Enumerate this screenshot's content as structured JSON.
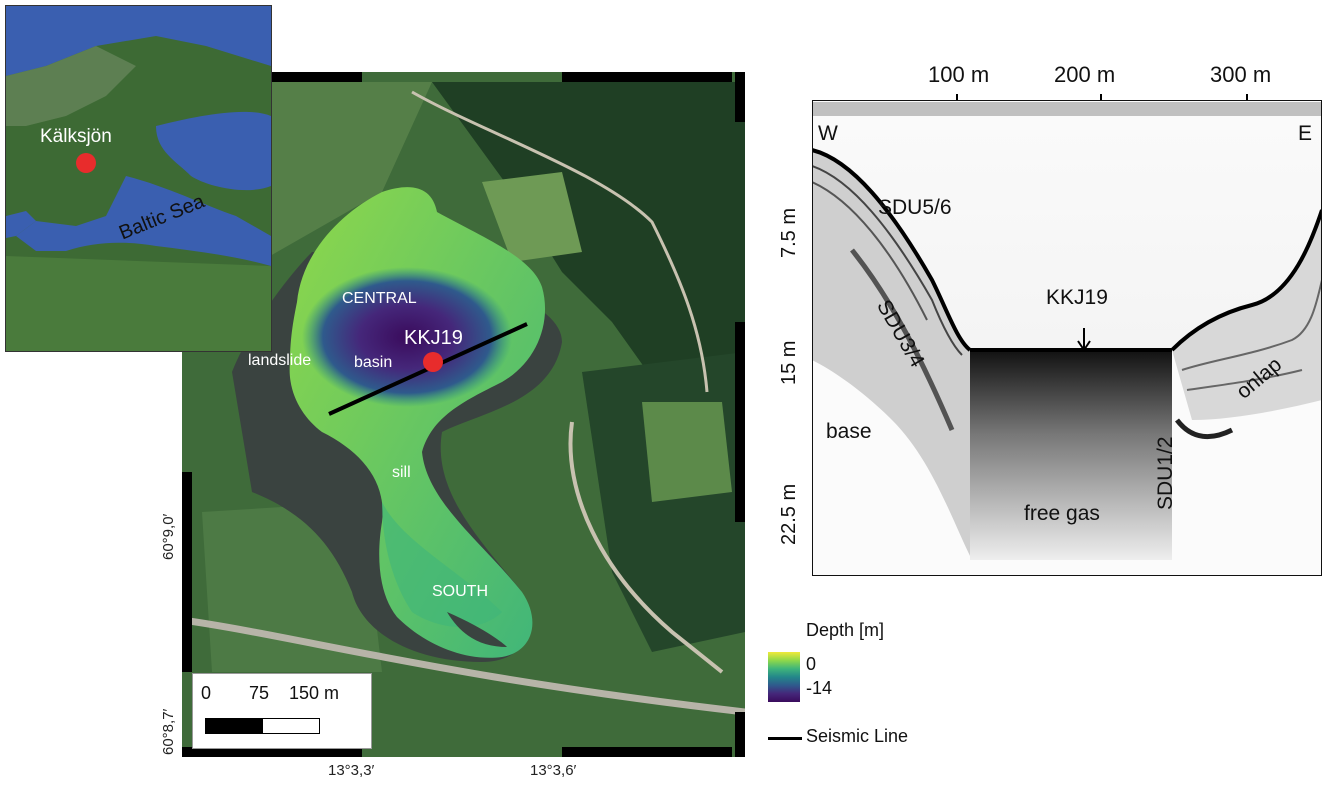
{
  "inset": {
    "location_label": "Kälksjön",
    "sea_label": "Baltic Sea"
  },
  "map": {
    "labels": {
      "central": "CENTRAL",
      "basin": "basin",
      "landslide": "landslide",
      "core": "KKJ19",
      "sill": "sill",
      "south": "SOUTH"
    },
    "scale_bar": {
      "ticks": [
        "0",
        "75",
        "150 m"
      ]
    },
    "lat_labels": [
      "60°9,0′",
      "60°8,7′"
    ],
    "lon_labels": [
      "13°3,3′",
      "13°3,6′"
    ]
  },
  "seismic": {
    "top_axis": [
      "100 m",
      "200 m",
      "300 m"
    ],
    "left_axis": [
      "7.5 m",
      "15 m",
      "22.5 m"
    ],
    "dir_west": "W",
    "dir_east": "E",
    "labels": {
      "sdu56": "SDU5/6",
      "sdu34": "SDU3/4",
      "sdu12": "SDU1/2",
      "core": "KKJ19",
      "onlap": "onlap",
      "base": "base",
      "gas": "free gas"
    }
  },
  "legend": {
    "title": "Depth [m]",
    "max": "0",
    "min": "-14",
    "line_label": "Seismic Line",
    "colors": [
      "#f0e93a",
      "#8fd84a",
      "#3fb57a",
      "#23878a",
      "#2f5a8c",
      "#45277a",
      "#3a0b5c"
    ]
  }
}
